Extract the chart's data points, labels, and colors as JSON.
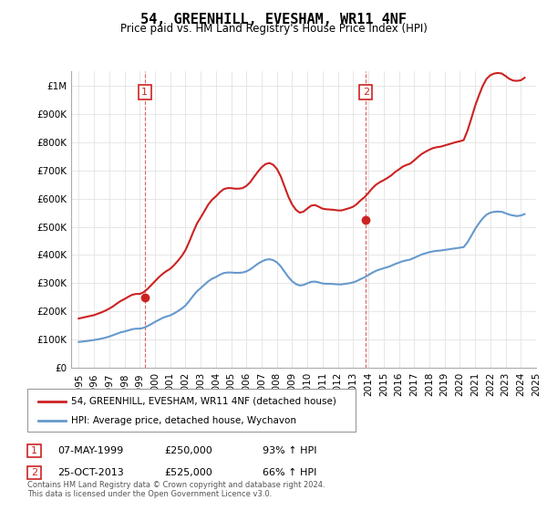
{
  "title": "54, GREENHILL, EVESHAM, WR11 4NF",
  "subtitle": "Price paid vs. HM Land Registry's House Price Index (HPI)",
  "hpi_color": "#6699cc",
  "price_color": "#cc2222",
  "annotation_color": "#cc2222",
  "background_color": "#ffffff",
  "grid_color": "#dddddd",
  "ylim": [
    0,
    1050000
  ],
  "yticks": [
    0,
    100000,
    200000,
    300000,
    400000,
    500000,
    600000,
    700000,
    800000,
    900000,
    1000000
  ],
  "ytick_labels": [
    "£0",
    "£100K",
    "£200K",
    "£300K",
    "£400K",
    "£500K",
    "£600K",
    "£700K",
    "£800K",
    "£900K",
    "£1M"
  ],
  "legend_label_price": "54, GREENHILL, EVESHAM, WR11 4NF (detached house)",
  "legend_label_hpi": "HPI: Average price, detached house, Wychavon",
  "annotation1_label": "1",
  "annotation1_date": "07-MAY-1999",
  "annotation1_price": "£250,000",
  "annotation1_pct": "93% ↑ HPI",
  "annotation2_label": "2",
  "annotation2_date": "25-OCT-2013",
  "annotation2_price": "£525,000",
  "annotation2_pct": "66% ↑ HPI",
  "footer": "Contains HM Land Registry data © Crown copyright and database right 2024.\nThis data is licensed under the Open Government Licence v3.0.",
  "hpi_x": [
    1995.0,
    1995.25,
    1995.5,
    1995.75,
    1996.0,
    1996.25,
    1996.5,
    1996.75,
    1997.0,
    1997.25,
    1997.5,
    1997.75,
    1998.0,
    1998.25,
    1998.5,
    1998.75,
    1999.0,
    1999.25,
    1999.5,
    1999.75,
    2000.0,
    2000.25,
    2000.5,
    2000.75,
    2001.0,
    2001.25,
    2001.5,
    2001.75,
    2002.0,
    2002.25,
    2002.5,
    2002.75,
    2003.0,
    2003.25,
    2003.5,
    2003.75,
    2004.0,
    2004.25,
    2004.5,
    2004.75,
    2005.0,
    2005.25,
    2005.5,
    2005.75,
    2006.0,
    2006.25,
    2006.5,
    2006.75,
    2007.0,
    2007.25,
    2007.5,
    2007.75,
    2008.0,
    2008.25,
    2008.5,
    2008.75,
    2009.0,
    2009.25,
    2009.5,
    2009.75,
    2010.0,
    2010.25,
    2010.5,
    2010.75,
    2011.0,
    2011.25,
    2011.5,
    2011.75,
    2012.0,
    2012.25,
    2012.5,
    2012.75,
    2013.0,
    2013.25,
    2013.5,
    2013.75,
    2014.0,
    2014.25,
    2014.5,
    2014.75,
    2015.0,
    2015.25,
    2015.5,
    2015.75,
    2016.0,
    2016.25,
    2016.5,
    2016.75,
    2017.0,
    2017.25,
    2017.5,
    2017.75,
    2018.0,
    2018.25,
    2018.5,
    2018.75,
    2019.0,
    2019.25,
    2019.5,
    2019.75,
    2020.0,
    2020.25,
    2020.5,
    2020.75,
    2021.0,
    2021.25,
    2021.5,
    2021.75,
    2022.0,
    2022.25,
    2022.5,
    2022.75,
    2023.0,
    2023.25,
    2023.5,
    2023.75,
    2024.0,
    2024.25
  ],
  "hpi_y": [
    92000,
    93500,
    95000,
    97000,
    99000,
    101000,
    104000,
    107000,
    111000,
    116000,
    121000,
    126000,
    129000,
    133000,
    137000,
    139000,
    139000,
    142000,
    148000,
    155000,
    163000,
    170000,
    177000,
    182000,
    186000,
    193000,
    201000,
    210000,
    221000,
    237000,
    255000,
    271000,
    283000,
    295000,
    307000,
    316000,
    322000,
    330000,
    336000,
    338000,
    338000,
    337000,
    337000,
    338000,
    342000,
    349000,
    359000,
    369000,
    377000,
    383000,
    385000,
    382000,
    374000,
    360000,
    341000,
    322000,
    307000,
    297000,
    292000,
    294000,
    300000,
    305000,
    306000,
    303000,
    299000,
    298000,
    298000,
    297000,
    296000,
    296000,
    298000,
    300000,
    303000,
    308000,
    315000,
    321000,
    329000,
    337000,
    344000,
    349000,
    353000,
    357000,
    362000,
    368000,
    373000,
    378000,
    381000,
    384000,
    390000,
    396000,
    402000,
    406000,
    410000,
    413000,
    415000,
    416000,
    418000,
    420000,
    422000,
    424000,
    426000,
    428000,
    445000,
    468000,
    492000,
    512000,
    530000,
    543000,
    550000,
    553000,
    554000,
    553000,
    548000,
    543000,
    540000,
    538000,
    540000,
    545000
  ],
  "price_x": [
    1995.0,
    1995.25,
    1995.5,
    1995.75,
    1996.0,
    1996.25,
    1996.5,
    1996.75,
    1997.0,
    1997.25,
    1997.5,
    1997.75,
    1998.0,
    1998.25,
    1998.5,
    1998.75,
    1999.0,
    1999.25,
    1999.5,
    1999.75,
    2000.0,
    2000.25,
    2000.5,
    2000.75,
    2001.0,
    2001.25,
    2001.5,
    2001.75,
    2002.0,
    2002.25,
    2002.5,
    2002.75,
    2003.0,
    2003.25,
    2003.5,
    2003.75,
    2004.0,
    2004.25,
    2004.5,
    2004.75,
    2005.0,
    2005.25,
    2005.5,
    2005.75,
    2006.0,
    2006.25,
    2006.5,
    2006.75,
    2007.0,
    2007.25,
    2007.5,
    2007.75,
    2008.0,
    2008.25,
    2008.5,
    2008.75,
    2009.0,
    2009.25,
    2009.5,
    2009.75,
    2010.0,
    2010.25,
    2010.5,
    2010.75,
    2011.0,
    2011.25,
    2011.5,
    2011.75,
    2012.0,
    2012.25,
    2012.5,
    2012.75,
    2013.0,
    2013.25,
    2013.5,
    2013.75,
    2014.0,
    2014.25,
    2014.5,
    2014.75,
    2015.0,
    2015.25,
    2015.5,
    2015.75,
    2016.0,
    2016.25,
    2016.5,
    2016.75,
    2017.0,
    2017.25,
    2017.5,
    2017.75,
    2018.0,
    2018.25,
    2018.5,
    2018.75,
    2019.0,
    2019.25,
    2019.5,
    2019.75,
    2020.0,
    2020.25,
    2020.5,
    2020.75,
    2021.0,
    2021.25,
    2021.5,
    2021.75,
    2022.0,
    2022.25,
    2022.5,
    2022.75,
    2023.0,
    2023.25,
    2023.5,
    2023.75,
    2024.0,
    2024.25
  ],
  "price_y": [
    175000,
    178000,
    181000,
    184000,
    187000,
    192000,
    197000,
    203000,
    210000,
    218000,
    228000,
    237000,
    244000,
    252000,
    259000,
    262000,
    262000,
    268000,
    279000,
    293000,
    307000,
    321000,
    333000,
    343000,
    351000,
    364000,
    379000,
    396000,
    417000,
    447000,
    480000,
    511000,
    533000,
    556000,
    579000,
    596000,
    608000,
    622000,
    633000,
    637000,
    637000,
    635000,
    635000,
    637000,
    645000,
    658000,
    677000,
    695000,
    711000,
    722000,
    726000,
    720000,
    705000,
    679000,
    643000,
    607000,
    579000,
    560000,
    550000,
    554000,
    565000,
    575000,
    577000,
    571000,
    564000,
    562000,
    561000,
    560000,
    558000,
    558000,
    562000,
    566000,
    571000,
    581000,
    594000,
    605000,
    620000,
    636000,
    649000,
    658000,
    665000,
    673000,
    682000,
    694000,
    703000,
    713000,
    719000,
    724000,
    735000,
    747000,
    758000,
    766000,
    773000,
    779000,
    782000,
    784000,
    788000,
    792000,
    796000,
    800000,
    803000,
    807000,
    840000,
    883000,
    928000,
    965000,
    999000,
    1024000,
    1037000,
    1043000,
    1045000,
    1043000,
    1034000,
    1024000,
    1018000,
    1017000,
    1019000,
    1028000
  ],
  "sale1_x": 1999.33,
  "sale1_y": 250000,
  "sale2_x": 2013.83,
  "sale2_y": 525000,
  "vline1_x": 1999.33,
  "vline2_x": 2013.83,
  "xlim": [
    1994.5,
    2025.0
  ],
  "xticks": [
    1995,
    1996,
    1997,
    1998,
    1999,
    2000,
    2001,
    2002,
    2003,
    2004,
    2005,
    2006,
    2007,
    2008,
    2009,
    2010,
    2011,
    2012,
    2013,
    2014,
    2015,
    2016,
    2017,
    2018,
    2019,
    2020,
    2021,
    2022,
    2023,
    2024,
    2025
  ]
}
